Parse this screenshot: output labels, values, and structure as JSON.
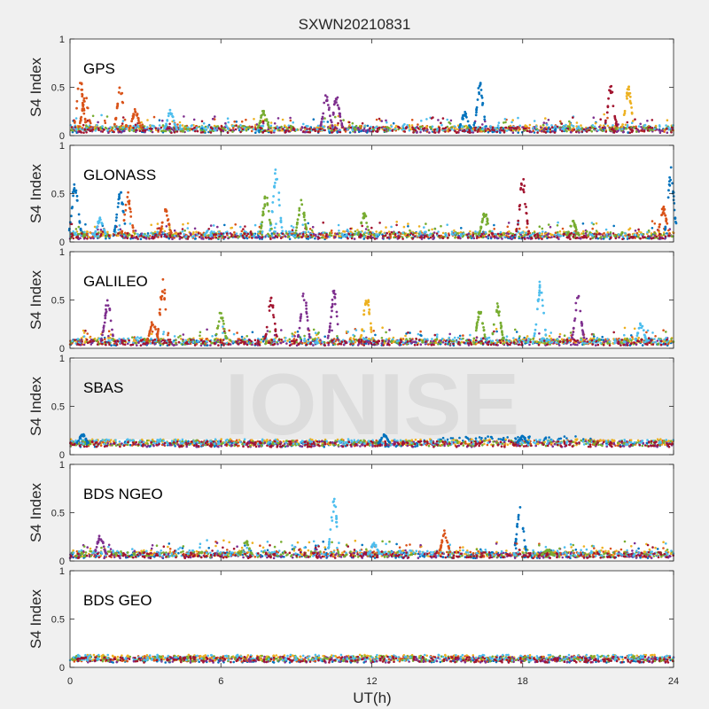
{
  "chart_data": {
    "type": "scatter",
    "title": "SXWN20210831",
    "xlabel": "UT(h)",
    "ylabel": "S4 Index",
    "xlim": [
      0,
      24
    ],
    "ylim": [
      0,
      1
    ],
    "xticks": [
      "0",
      "6",
      "12",
      "18",
      "24"
    ],
    "yticks": [
      "0",
      "0.5",
      "1"
    ],
    "watermark": "IONISE",
    "series_colors": [
      "#0072bd",
      "#d95319",
      "#edb120",
      "#7e2f8e",
      "#77ac30",
      "#4dbeee",
      "#a2142f"
    ],
    "panels": [
      {
        "name": "GPS",
        "baseline": 0.06,
        "spikes": [
          {
            "t": 0.4,
            "peak": 0.63,
            "color": "#d95319"
          },
          {
            "t": 0.6,
            "peak": 0.44,
            "color": "#d95319"
          },
          {
            "t": 2.0,
            "peak": 0.52,
            "color": "#d95319"
          },
          {
            "t": 2.6,
            "peak": 0.28,
            "color": "#d95319"
          },
          {
            "t": 4.0,
            "peak": 0.27,
            "color": "#4dbeee"
          },
          {
            "t": 7.7,
            "peak": 0.28,
            "color": "#77ac30"
          },
          {
            "t": 10.2,
            "peak": 0.46,
            "color": "#7e2f8e"
          },
          {
            "t": 10.6,
            "peak": 0.42,
            "color": "#7e2f8e"
          },
          {
            "t": 16.3,
            "peak": 0.57,
            "color": "#0072bd"
          },
          {
            "t": 15.7,
            "peak": 0.25,
            "color": "#0072bd"
          },
          {
            "t": 21.5,
            "peak": 0.53,
            "color": "#a2142f"
          },
          {
            "t": 22.2,
            "peak": 0.52,
            "color": "#edb120"
          }
        ]
      },
      {
        "name": "GLONASS",
        "baseline": 0.06,
        "spikes": [
          {
            "t": 0.2,
            "peak": 0.66,
            "color": "#0072bd"
          },
          {
            "t": 1.2,
            "peak": 0.26,
            "color": "#4dbeee"
          },
          {
            "t": 2.0,
            "peak": 0.58,
            "color": "#0072bd"
          },
          {
            "t": 2.3,
            "peak": 0.52,
            "color": "#d95319"
          },
          {
            "t": 3.8,
            "peak": 0.35,
            "color": "#d95319"
          },
          {
            "t": 8.2,
            "peak": 0.8,
            "color": "#4dbeee"
          },
          {
            "t": 7.8,
            "peak": 0.52,
            "color": "#77ac30"
          },
          {
            "t": 9.2,
            "peak": 0.46,
            "color": "#77ac30"
          },
          {
            "t": 11.7,
            "peak": 0.31,
            "color": "#77ac30"
          },
          {
            "t": 16.5,
            "peak": 0.33,
            "color": "#77ac30"
          },
          {
            "t": 18.0,
            "peak": 0.7,
            "color": "#a2142f"
          },
          {
            "t": 20.0,
            "peak": 0.22,
            "color": "#77ac30"
          },
          {
            "t": 23.6,
            "peak": 0.38,
            "color": "#d95319"
          },
          {
            "t": 23.9,
            "peak": 0.78,
            "color": "#0072bd"
          }
        ]
      },
      {
        "name": "GALILEO",
        "baseline": 0.06,
        "spikes": [
          {
            "t": 1.5,
            "peak": 0.53,
            "color": "#7e2f8e"
          },
          {
            "t": 3.7,
            "peak": 0.73,
            "color": "#d95319"
          },
          {
            "t": 3.3,
            "peak": 0.3,
            "color": "#d95319"
          },
          {
            "t": 6.0,
            "peak": 0.4,
            "color": "#77ac30"
          },
          {
            "t": 8.0,
            "peak": 0.55,
            "color": "#a2142f"
          },
          {
            "t": 9.3,
            "peak": 0.64,
            "color": "#7e2f8e"
          },
          {
            "t": 10.5,
            "peak": 0.62,
            "color": "#7e2f8e"
          },
          {
            "t": 11.8,
            "peak": 0.6,
            "color": "#edb120"
          },
          {
            "t": 16.3,
            "peak": 0.43,
            "color": "#77ac30"
          },
          {
            "t": 17.0,
            "peak": 0.48,
            "color": "#77ac30"
          },
          {
            "t": 18.7,
            "peak": 0.74,
            "color": "#4dbeee"
          },
          {
            "t": 20.2,
            "peak": 0.6,
            "color": "#7e2f8e"
          },
          {
            "t": 22.7,
            "peak": 0.27,
            "color": "#4dbeee"
          }
        ]
      },
      {
        "name": "SBAS",
        "baseline": 0.11,
        "spikes": [
          {
            "t": 0.5,
            "peak": 0.22,
            "color": "#0072bd"
          },
          {
            "t": 12.5,
            "peak": 0.21,
            "color": "#0072bd"
          },
          {
            "t": 18.0,
            "peak": 0.2,
            "color": "#0072bd"
          }
        ]
      },
      {
        "name": "BDS NGEO",
        "baseline": 0.06,
        "spikes": [
          {
            "t": 1.2,
            "peak": 0.28,
            "color": "#7e2f8e"
          },
          {
            "t": 7.0,
            "peak": 0.22,
            "color": "#77ac30"
          },
          {
            "t": 10.5,
            "peak": 0.65,
            "color": "#4dbeee"
          },
          {
            "t": 12.1,
            "peak": 0.19,
            "color": "#4dbeee"
          },
          {
            "t": 14.9,
            "peak": 0.32,
            "color": "#d95319"
          },
          {
            "t": 17.9,
            "peak": 0.62,
            "color": "#0072bd"
          },
          {
            "t": 19.0,
            "peak": 0.12,
            "color": "#77ac30"
          }
        ]
      },
      {
        "name": "BDS GEO",
        "baseline": 0.08,
        "spikes": []
      }
    ]
  }
}
